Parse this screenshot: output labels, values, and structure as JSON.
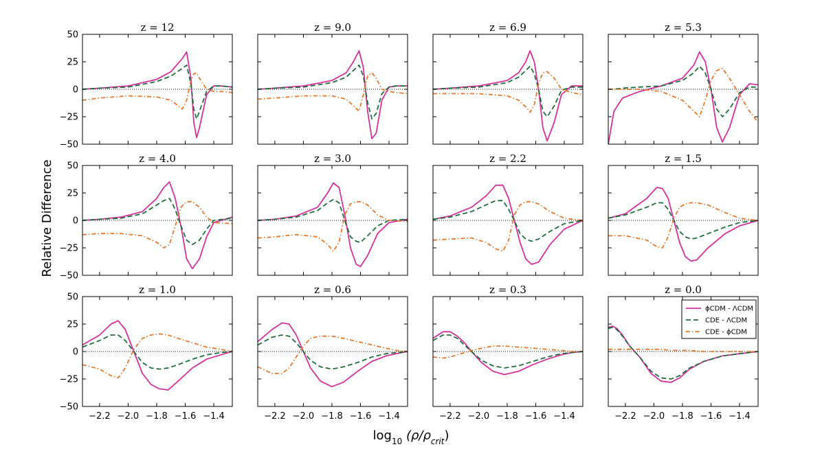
{
  "chart_data": {
    "type": "line",
    "ylabel": "Relative Difference",
    "xlabel_base": "log",
    "xlabel_sub": "10",
    "xlabel_expr": "(ρ/ρ",
    "xlabel_expr_sub": "crit",
    "xlabel_expr_end": ")",
    "xlim": [
      -2.32,
      -1.27
    ],
    "ylim": [
      -50,
      50
    ],
    "xticks": [
      -2.2,
      -2.0,
      -1.8,
      -1.6,
      -1.4
    ],
    "xtick_labels": [
      "−2.2",
      "−2.0",
      "−1.8",
      "−1.6",
      "−1.4"
    ],
    "yticks": [
      50,
      25,
      0,
      -25,
      -50
    ],
    "ytick_labels": [
      "50",
      "25",
      "0",
      "−25",
      "−50"
    ],
    "series_styles": [
      {
        "label": "ϕCDM - ΛCDM",
        "color": "#d4309c",
        "dash": ""
      },
      {
        "label": "CDE - ΛCDM",
        "color": "#1e6e3a",
        "dash": "7,4"
      },
      {
        "label": "CDE - ϕCDM",
        "color": "#e8772a",
        "dash": "6,3,1.5,3"
      }
    ],
    "legend_position": "top-right of last panel",
    "panels": [
      {
        "title": "z = 12",
        "x": [
          -2.32,
          -2.2,
          -2.0,
          -1.8,
          -1.7,
          -1.62,
          -1.59,
          -1.56,
          -1.54,
          -1.52,
          -1.5,
          -1.45,
          -1.4,
          -1.35,
          -1.27
        ],
        "series": [
          [
            0,
            1,
            3,
            9,
            16,
            28,
            34,
            10,
            -30,
            -44,
            -35,
            -5,
            3,
            3,
            2
          ],
          [
            0,
            1,
            2,
            7,
            12,
            19,
            22,
            5,
            -18,
            -27,
            -20,
            -2,
            3,
            3,
            2
          ],
          [
            -10,
            -8,
            -6,
            -7,
            -10,
            -18,
            -10,
            8,
            14,
            15,
            10,
            0,
            -2,
            -2,
            -3
          ]
        ]
      },
      {
        "title": "z = 9.0",
        "x": [
          -2.32,
          -2.2,
          -2.0,
          -1.8,
          -1.7,
          -1.65,
          -1.61,
          -1.58,
          -1.55,
          -1.52,
          -1.49,
          -1.45,
          -1.4,
          -1.35,
          -1.27
        ],
        "series": [
          [
            0,
            1,
            3,
            8,
            15,
            25,
            35,
            20,
            -20,
            -45,
            -40,
            -10,
            2,
            3,
            3
          ],
          [
            0,
            1,
            2,
            6,
            11,
            17,
            22,
            12,
            -12,
            -27,
            -22,
            -4,
            2,
            3,
            3
          ],
          [
            -9,
            -8,
            -6,
            -6,
            -9,
            -15,
            -20,
            -5,
            12,
            15,
            10,
            0,
            -2,
            -3,
            -4
          ]
        ]
      },
      {
        "title": "z = 6.9",
        "x": [
          -2.32,
          -2.2,
          -2.0,
          -1.8,
          -1.72,
          -1.67,
          -1.64,
          -1.61,
          -1.58,
          -1.55,
          -1.52,
          -1.47,
          -1.42,
          -1.35,
          -1.27
        ],
        "series": [
          [
            0,
            1,
            3,
            8,
            15,
            25,
            35,
            25,
            0,
            -35,
            -47,
            -30,
            -5,
            3,
            3
          ],
          [
            0,
            1,
            2,
            6,
            11,
            17,
            21,
            14,
            0,
            -20,
            -25,
            -15,
            -1,
            2,
            2
          ],
          [
            -4,
            -4,
            -4,
            -6,
            -10,
            -16,
            -21,
            -14,
            5,
            15,
            16,
            10,
            0,
            -3,
            -5
          ]
        ]
      },
      {
        "title": "z = 5.3",
        "x": [
          -2.32,
          -2.28,
          -2.22,
          -2.1,
          -1.95,
          -1.8,
          -1.72,
          -1.68,
          -1.64,
          -1.6,
          -1.56,
          -1.52,
          -1.47,
          -1.4,
          -1.33,
          -1.27
        ],
        "series": [
          [
            -50,
            -20,
            -8,
            -2,
            3,
            10,
            22,
            34,
            25,
            0,
            -35,
            -48,
            -35,
            -5,
            5,
            4
          ],
          [
            0,
            0,
            1,
            2,
            3,
            8,
            15,
            21,
            15,
            0,
            -18,
            -25,
            -18,
            -3,
            2,
            2
          ],
          [
            0,
            0,
            0,
            0,
            -2,
            -10,
            -20,
            -25,
            -10,
            8,
            17,
            19,
            10,
            -5,
            -20,
            -30
          ]
        ]
      },
      {
        "title": "z = 4.0",
        "x": [
          -2.32,
          -2.2,
          -2.05,
          -1.9,
          -1.8,
          -1.75,
          -1.71,
          -1.67,
          -1.63,
          -1.59,
          -1.55,
          -1.5,
          -1.45,
          -1.4,
          -1.27
        ],
        "series": [
          [
            0,
            1,
            3,
            8,
            20,
            30,
            35,
            20,
            -5,
            -35,
            -44,
            -35,
            -15,
            -2,
            3
          ],
          [
            0,
            1,
            2,
            6,
            14,
            18,
            20,
            10,
            -5,
            -18,
            -22,
            -18,
            -8,
            0,
            2
          ],
          [
            -13,
            -12,
            -12,
            -14,
            -20,
            -25,
            -22,
            -5,
            12,
            17,
            17,
            12,
            3,
            -2,
            -3
          ]
        ]
      },
      {
        "title": "z = 3.0",
        "x": [
          -2.32,
          -2.2,
          -2.05,
          -1.9,
          -1.83,
          -1.79,
          -1.75,
          -1.71,
          -1.67,
          -1.63,
          -1.6,
          -1.55,
          -1.48,
          -1.4,
          -1.27
        ],
        "series": [
          [
            0,
            1,
            4,
            12,
            25,
            34,
            30,
            5,
            -25,
            -40,
            -42,
            -32,
            -12,
            -2,
            1
          ],
          [
            0,
            1,
            3,
            9,
            16,
            19,
            16,
            0,
            -15,
            -19,
            -20,
            -14,
            -5,
            0,
            1
          ],
          [
            -16,
            -15,
            -13,
            -15,
            -22,
            -28,
            -20,
            5,
            15,
            17,
            17,
            14,
            5,
            0,
            -1
          ]
        ]
      },
      {
        "title": "z = 2.2",
        "x": [
          -2.32,
          -2.2,
          -2.05,
          -1.95,
          -1.88,
          -1.83,
          -1.79,
          -1.75,
          -1.71,
          -1.67,
          -1.63,
          -1.58,
          -1.5,
          -1.4,
          -1.27
        ],
        "series": [
          [
            1,
            4,
            12,
            22,
            32,
            32,
            20,
            0,
            -20,
            -35,
            -40,
            -38,
            -22,
            -8,
            0
          ],
          [
            1,
            3,
            8,
            14,
            18,
            18,
            10,
            0,
            -12,
            -17,
            -19,
            -17,
            -10,
            -3,
            0
          ],
          [
            -18,
            -17,
            -16,
            -20,
            -26,
            -28,
            -18,
            5,
            14,
            17,
            17,
            15,
            8,
            2,
            0
          ]
        ]
      },
      {
        "title": "z = 1.5",
        "x": [
          -2.32,
          -2.2,
          -2.05,
          -1.98,
          -1.94,
          -1.9,
          -1.86,
          -1.82,
          -1.78,
          -1.74,
          -1.7,
          -1.62,
          -1.5,
          -1.4,
          -1.27
        ],
        "series": [
          [
            2,
            6,
            20,
            30,
            29,
            20,
            0,
            -20,
            -33,
            -37,
            -36,
            -25,
            -12,
            -5,
            0
          ],
          [
            2,
            5,
            12,
            16,
            16,
            10,
            0,
            -10,
            -15,
            -17,
            -16,
            -12,
            -6,
            -2,
            0
          ],
          [
            -14,
            -14,
            -18,
            -24,
            -25,
            -15,
            2,
            12,
            15,
            16,
            16,
            14,
            7,
            2,
            0
          ]
        ]
      },
      {
        "title": "z = 1.0",
        "x": [
          -2.32,
          -2.2,
          -2.12,
          -2.07,
          -2.02,
          -1.96,
          -1.9,
          -1.84,
          -1.78,
          -1.72,
          -1.65,
          -1.55,
          -1.45,
          -1.35,
          -1.27
        ],
        "series": [
          [
            6,
            15,
            25,
            28,
            20,
            0,
            -20,
            -30,
            -34,
            -35,
            -27,
            -15,
            -7,
            -3,
            0
          ],
          [
            4,
            10,
            15,
            15,
            10,
            0,
            -10,
            -15,
            -16,
            -15,
            -12,
            -7,
            -3,
            -1,
            0
          ],
          [
            -12,
            -16,
            -22,
            -24,
            -15,
            2,
            12,
            15,
            16,
            15,
            12,
            8,
            4,
            2,
            0
          ]
        ]
      },
      {
        "title": "z = 0.6",
        "x": [
          -2.32,
          -2.22,
          -2.15,
          -2.1,
          -2.05,
          -2.0,
          -1.95,
          -1.88,
          -1.8,
          -1.72,
          -1.62,
          -1.52,
          -1.42,
          -1.35,
          -1.27
        ],
        "series": [
          [
            9,
            20,
            26,
            25,
            15,
            0,
            -15,
            -27,
            -32,
            -28,
            -18,
            -9,
            -4,
            -2,
            0
          ],
          [
            6,
            13,
            15,
            14,
            8,
            0,
            -8,
            -14,
            -16,
            -14,
            -10,
            -5,
            -2,
            -1,
            0
          ],
          [
            -14,
            -20,
            -20,
            -15,
            -5,
            5,
            12,
            14,
            14,
            12,
            9,
            6,
            3,
            1,
            0
          ]
        ]
      },
      {
        "title": "z = 0.3",
        "x": [
          -2.32,
          -2.25,
          -2.2,
          -2.15,
          -2.1,
          -2.05,
          -1.98,
          -1.9,
          -1.82,
          -1.72,
          -1.62,
          -1.52,
          -1.42,
          -1.35,
          -1.27
        ],
        "series": [
          [
            12,
            18,
            18,
            14,
            8,
            0,
            -10,
            -18,
            -21,
            -18,
            -12,
            -7,
            -3,
            -1,
            0
          ],
          [
            10,
            15,
            15,
            12,
            6,
            0,
            -8,
            -13,
            -15,
            -13,
            -9,
            -5,
            -2,
            -1,
            0
          ],
          [
            -5,
            -6,
            -5,
            -3,
            -1,
            1,
            3,
            5,
            5,
            4,
            3,
            2,
            1,
            0,
            0
          ]
        ]
      },
      {
        "title": "z = 0.0",
        "x": [
          -2.32,
          -2.29,
          -2.26,
          -2.22,
          -2.17,
          -2.1,
          -2.02,
          -1.95,
          -1.88,
          -1.82,
          -1.75,
          -1.65,
          -1.52,
          -1.4,
          -1.27
        ],
        "series": [
          [
            22,
            23,
            21,
            15,
            5,
            -5,
            -20,
            -27,
            -28,
            -24,
            -16,
            -9,
            -4,
            -2,
            0
          ],
          [
            21,
            22,
            20,
            14,
            5,
            -5,
            -18,
            -24,
            -25,
            -22,
            -15,
            -9,
            -4,
            -2,
            0
          ],
          [
            2,
            2,
            2,
            2,
            2,
            2,
            2,
            2,
            1,
            1,
            1,
            0,
            0,
            0,
            0
          ]
        ]
      }
    ]
  }
}
